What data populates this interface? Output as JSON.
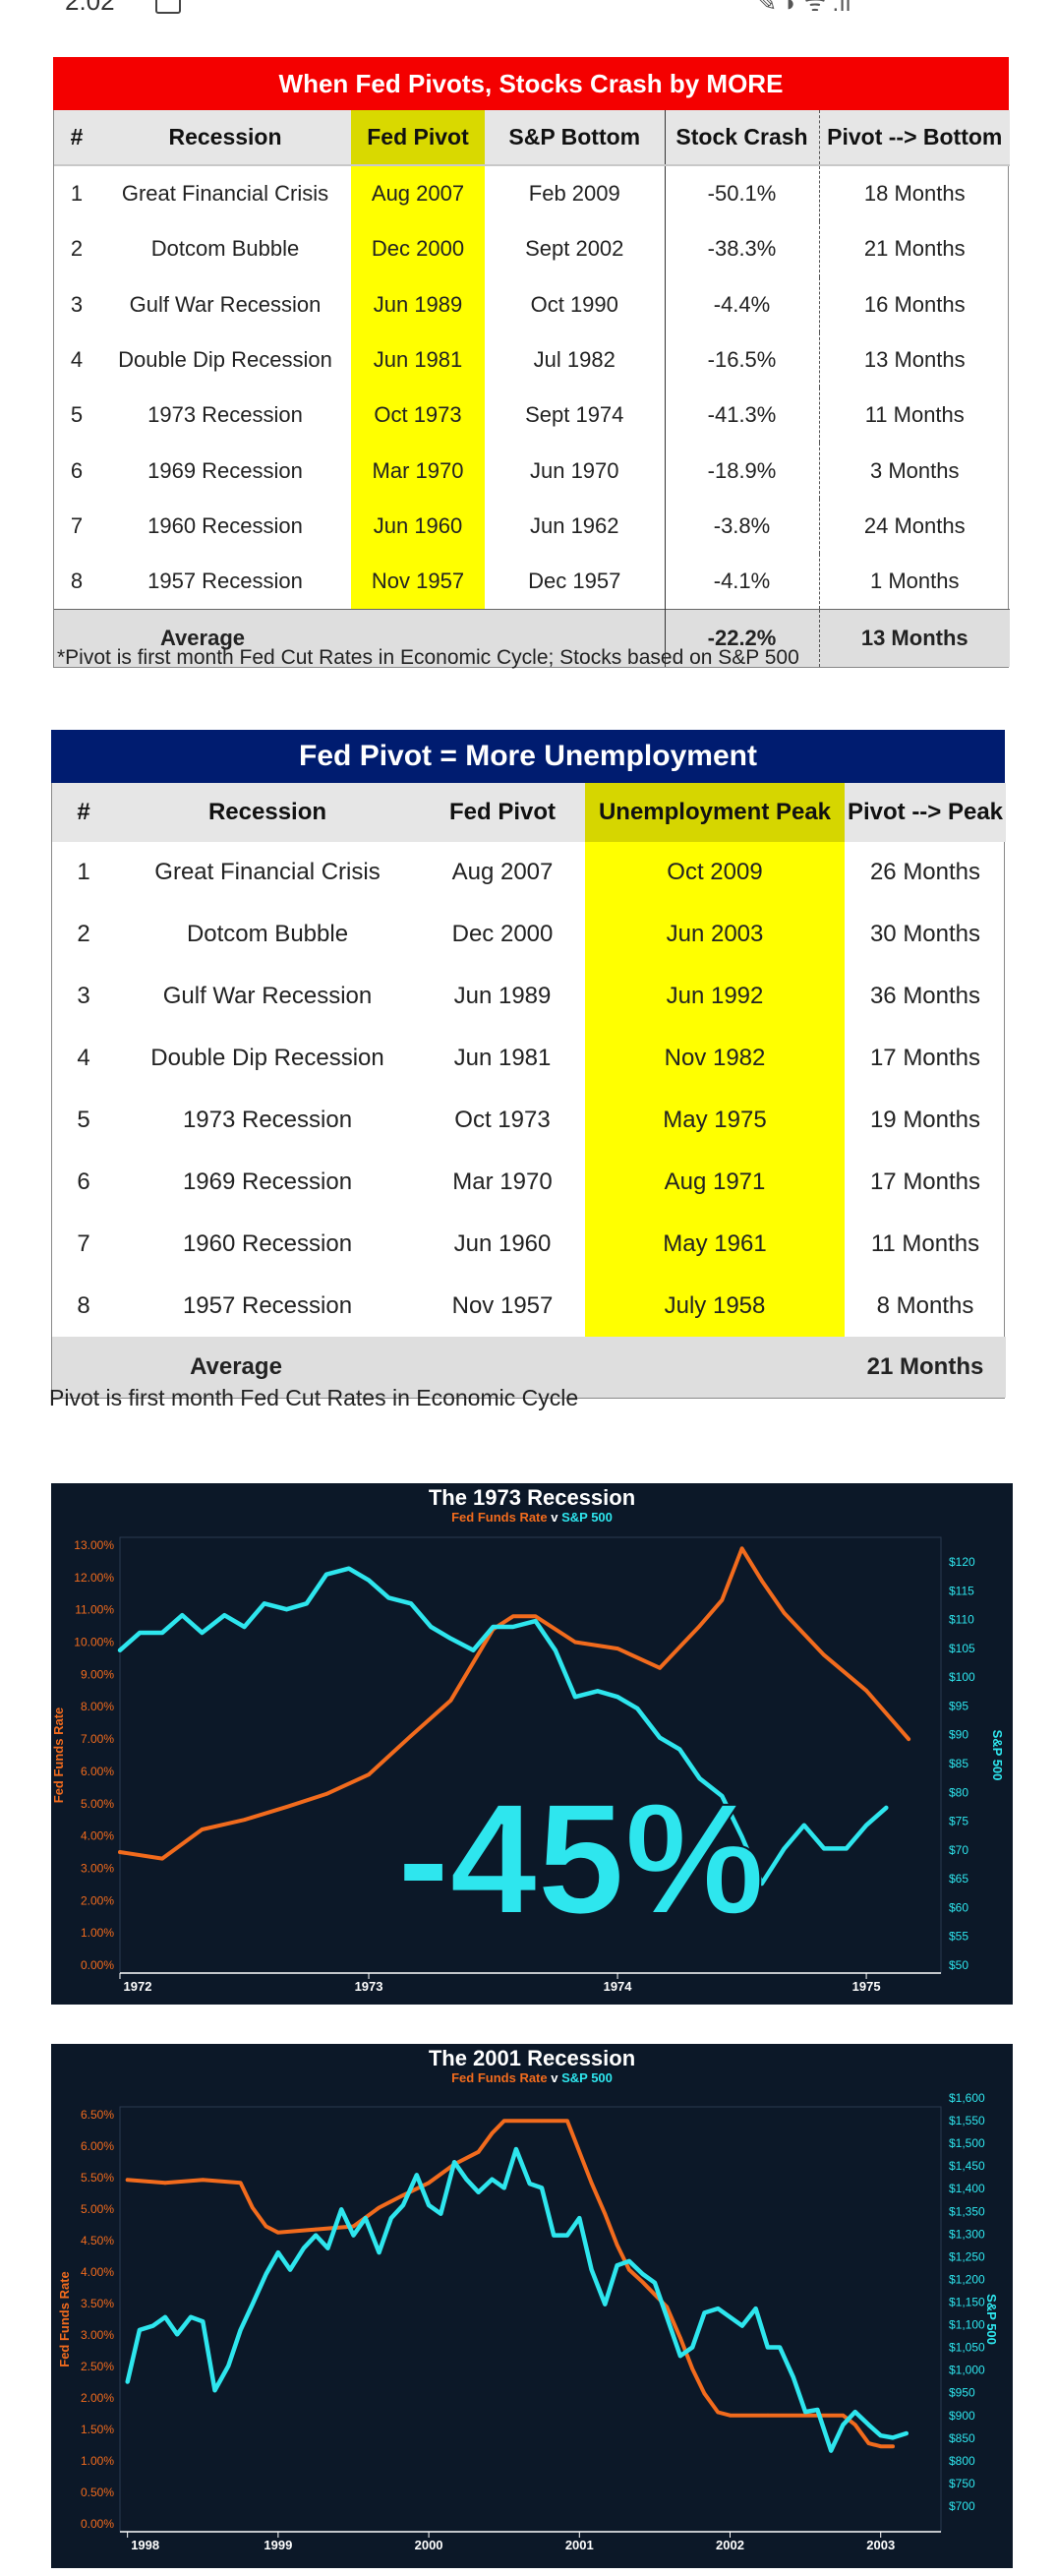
{
  "status_bar": {
    "time": "2:02"
  },
  "table1": {
    "title": "When Fed Pivots, Stocks Crash by MORE",
    "headers": [
      "#",
      "Recession",
      "Fed Pivot",
      "S&P Bottom",
      "Stock Crash",
      "Pivot --> Bottom"
    ],
    "rows": [
      [
        "1",
        "Great Financial Crisis",
        "Aug 2007",
        "Feb 2009",
        "-50.1%",
        "18 Months"
      ],
      [
        "2",
        "Dotcom Bubble",
        "Dec 2000",
        "Sept 2002",
        "-38.3%",
        "21 Months"
      ],
      [
        "3",
        "Gulf War Recession",
        "Jun 1989",
        "Oct 1990",
        "-4.4%",
        "16 Months"
      ],
      [
        "4",
        "Double Dip Recession",
        "Jun 1981",
        "Jul 1982",
        "-16.5%",
        "13 Months"
      ],
      [
        "5",
        "1973 Recession",
        "Oct 1973",
        "Sept 1974",
        "-41.3%",
        "11 Months"
      ],
      [
        "6",
        "1969 Recession",
        "Mar 1970",
        "Jun 1970",
        "-18.9%",
        "3 Months"
      ],
      [
        "7",
        "1960 Recession",
        "Jun 1960",
        "Jun 1962",
        "-3.8%",
        "24 Months"
      ],
      [
        "8",
        "1957 Recession",
        "Nov 1957",
        "Dec 1957",
        "-4.1%",
        "1 Months"
      ]
    ],
    "average_label": "Average",
    "average_crash": "-22.2%",
    "average_months": "13 Months",
    "footnote": "*Pivot is first month Fed Cut Rates in Economic Cycle; Stocks based on S&P 500"
  },
  "table2": {
    "title": "Fed Pivot = More Unemployment",
    "headers": [
      "#",
      "Recession",
      "Fed Pivot",
      "Unemployment Peak",
      "Pivot --> Peak"
    ],
    "rows": [
      [
        "1",
        "Great Financial Crisis",
        "Aug 2007",
        "Oct 2009",
        "26 Months"
      ],
      [
        "2",
        "Dotcom Bubble",
        "Dec 2000",
        "Jun 2003",
        "30 Months"
      ],
      [
        "3",
        "Gulf War Recession",
        "Jun 1989",
        "Jun 1992",
        "36 Months"
      ],
      [
        "4",
        "Double Dip Recession",
        "Jun 1981",
        "Nov 1982",
        "17 Months"
      ],
      [
        "5",
        "1973 Recession",
        "Oct 1973",
        "May 1975",
        "19 Months"
      ],
      [
        "6",
        "1969 Recession",
        "Mar 1970",
        "Aug 1971",
        "17 Months"
      ],
      [
        "7",
        "1960 Recession",
        "Jun 1960",
        "May 1961",
        "11 Months"
      ],
      [
        "8",
        "1957 Recession",
        "Nov 1957",
        "July 1958",
        "8 Months"
      ]
    ],
    "average_label": "Average",
    "average_months": "21 Months",
    "footnote": "Pivot is first month Fed Cut Rates in Economic Cycle"
  },
  "chart_data": [
    {
      "type": "line",
      "title": "The 1973 Recession",
      "subtitle_left": "Fed Funds Rate",
      "subtitle_mid": " v ",
      "subtitle_right": "S&P 500",
      "ylabel_left": "Fed Funds Rate",
      "ylabel_right": "S&P 500",
      "annotation": "-45%",
      "colors": {
        "rate": "#f26b1d",
        "sp": "#2ee6ee",
        "background": "#0c1828"
      },
      "x_ticks": [
        1972,
        1973,
        1974,
        1975
      ],
      "xlim": [
        1972,
        1975.3
      ],
      "ylim_left": [
        0,
        13
      ],
      "ylim_right": [
        50,
        122
      ],
      "left_ticks": [
        "13.00%",
        "12.00%",
        "11.00%",
        "10.00%",
        "9.00%",
        "8.00%",
        "7.00%",
        "6.00%",
        "5.00%",
        "4.00%",
        "3.00%",
        "2.00%",
        "1.00%",
        "0.00%"
      ],
      "right_ticks": [
        "$120",
        "$115",
        "$110",
        "$105",
        "$100",
        "$95",
        "$90",
        "$85",
        "$80",
        "$75",
        "$70",
        "$65",
        "$60",
        "$55",
        "$50"
      ],
      "series": [
        {
          "name": "Fed Funds Rate",
          "x": [
            1972.0,
            1972.17,
            1972.33,
            1972.5,
            1972.67,
            1972.83,
            1973.0,
            1973.17,
            1973.33,
            1973.5,
            1973.58,
            1973.67,
            1973.83,
            1974.0,
            1974.17,
            1974.33,
            1974.42,
            1974.5,
            1974.58,
            1974.67,
            1974.83,
            1975.0,
            1975.17
          ],
          "y": [
            3.5,
            3.3,
            4.2,
            4.5,
            4.9,
            5.3,
            5.9,
            7.1,
            8.2,
            10.4,
            10.8,
            10.8,
            10.0,
            9.8,
            9.2,
            10.5,
            11.3,
            12.9,
            11.9,
            10.9,
            9.6,
            8.5,
            7.0
          ]
        },
        {
          "name": "S&P 500",
          "x": [
            1972.0,
            1972.08,
            1972.17,
            1972.25,
            1972.33,
            1972.42,
            1972.5,
            1972.58,
            1972.67,
            1972.75,
            1972.83,
            1972.92,
            1973.0,
            1973.08,
            1973.17,
            1973.25,
            1973.33,
            1973.42,
            1973.5,
            1973.58,
            1973.67,
            1973.75,
            1973.83,
            1973.92,
            1974.0,
            1974.08,
            1974.17,
            1974.25,
            1974.33,
            1974.42,
            1974.5,
            1974.58,
            1974.67,
            1974.75,
            1974.83,
            1974.92,
            1975.0,
            1975.08
          ],
          "y": [
            104,
            107,
            107,
            110,
            107,
            110,
            108,
            112,
            111,
            112,
            117,
            118,
            116,
            113,
            112,
            108,
            106,
            104,
            108,
            108,
            109,
            104,
            96,
            97,
            96,
            94,
            89,
            87,
            82,
            79,
            72,
            64,
            70,
            74,
            70,
            70,
            74,
            77
          ]
        }
      ]
    },
    {
      "type": "line",
      "title": "The 2001 Recession",
      "subtitle_left": "Fed Funds Rate",
      "subtitle_mid": " v ",
      "subtitle_right": "S&P 500",
      "ylabel_left": "Fed Funds Rate",
      "ylabel_right": "S&P 500",
      "colors": {
        "rate": "#f26b1d",
        "sp": "#2ee6ee",
        "background": "#0c1828"
      },
      "x_ticks": [
        1998,
        1999,
        2000,
        2001,
        2002,
        2003
      ],
      "xlim": [
        1997.95,
        2003.4
      ],
      "ylim_left": [
        0,
        6.6
      ],
      "ylim_right": [
        650,
        1600
      ],
      "left_ticks": [
        "6.50%",
        "6.00%",
        "5.50%",
        "5.00%",
        "4.50%",
        "4.00%",
        "3.50%",
        "3.00%",
        "2.50%",
        "2.00%",
        "1.50%",
        "1.00%",
        "0.50%",
        "0.00%"
      ],
      "right_ticks": [
        "$1,600",
        "$1,550",
        "$1,500",
        "$1,450",
        "$1,400",
        "$1,350",
        "$1,300",
        "$1,250",
        "$1,200",
        "$1,150",
        "$1,100",
        "$1,050",
        "$1,000",
        "$950",
        "$900",
        "$850",
        "$800",
        "$750",
        "$700"
      ],
      "series": [
        {
          "name": "Fed Funds Rate",
          "x": [
            1998.0,
            1998.25,
            1998.5,
            1998.75,
            1998.83,
            1998.92,
            1999.0,
            1999.25,
            1999.5,
            1999.67,
            1999.83,
            2000.0,
            2000.17,
            2000.33,
            2000.42,
            2000.5,
            2000.75,
            2000.92,
            2001.0,
            2001.08,
            2001.17,
            2001.25,
            2001.33,
            2001.42,
            2001.5,
            2001.58,
            2001.67,
            2001.75,
            2001.83,
            2001.92,
            2002.0,
            2002.25,
            2002.5,
            2002.75,
            2002.83,
            2002.92,
            2003.0,
            2003.08
          ],
          "y": [
            5.55,
            5.5,
            5.55,
            5.5,
            5.1,
            4.8,
            4.7,
            4.75,
            4.8,
            5.1,
            5.3,
            5.5,
            5.8,
            6.0,
            6.3,
            6.5,
            6.5,
            6.5,
            6.0,
            5.5,
            5.0,
            4.5,
            4.1,
            3.9,
            3.7,
            3.5,
            3.0,
            2.5,
            2.1,
            1.8,
            1.75,
            1.75,
            1.75,
            1.75,
            1.6,
            1.3,
            1.25,
            1.25
          ]
        },
        {
          "name": "S&P 500",
          "x": [
            1998.0,
            1998.08,
            1998.17,
            1998.25,
            1998.33,
            1998.42,
            1998.5,
            1998.58,
            1998.67,
            1998.75,
            1998.83,
            1998.92,
            1999.0,
            1999.08,
            1999.17,
            1999.25,
            1999.33,
            1999.42,
            1999.5,
            1999.58,
            1999.67,
            1999.75,
            1999.83,
            1999.92,
            2000.0,
            2000.08,
            2000.17,
            2000.25,
            2000.33,
            2000.42,
            2000.5,
            2000.58,
            2000.67,
            2000.75,
            2000.83,
            2000.92,
            2001.0,
            2001.08,
            2001.17,
            2001.25,
            2001.33,
            2001.42,
            2001.5,
            2001.58,
            2001.67,
            2001.75,
            2001.83,
            2001.92,
            2002.0,
            2002.08,
            2002.17,
            2002.25,
            2002.33,
            2002.42,
            2002.5,
            2002.58,
            2002.67,
            2002.75,
            2002.83,
            2002.92,
            2003.0,
            2003.08,
            2003.17
          ],
          "y": [
            980,
            1100,
            1110,
            1130,
            1090,
            1130,
            1120,
            960,
            1017,
            1100,
            1160,
            1230,
            1280,
            1240,
            1290,
            1320,
            1290,
            1380,
            1320,
            1360,
            1280,
            1360,
            1390,
            1460,
            1390,
            1370,
            1490,
            1450,
            1420,
            1450,
            1430,
            1520,
            1440,
            1430,
            1320,
            1320,
            1360,
            1240,
            1160,
            1250,
            1260,
            1230,
            1210,
            1130,
            1040,
            1060,
            1140,
            1150,
            1130,
            1110,
            1150,
            1060,
            1060,
            990,
            910,
            915,
            820,
            880,
            910,
            880,
            855,
            850,
            860
          ]
        }
      ]
    }
  ]
}
